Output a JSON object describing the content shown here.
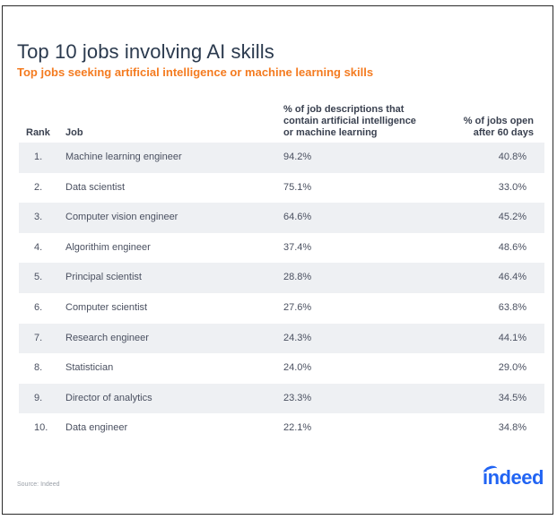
{
  "chart_data": {
    "type": "table",
    "title": "Top 10 jobs involving AI skills",
    "subtitle": "Top jobs seeking artificial intelligence or machine learning skills",
    "columns": [
      "Rank",
      "Job",
      "% of job descriptions that contain artificial intelligence or machine learning",
      "% of jobs open after 60 days"
    ],
    "header_lines": {
      "rank": "Rank",
      "job": "Job",
      "desc": [
        "% of job descriptions that",
        "contain artificial intelligence",
        "or machine learning"
      ],
      "open": [
        "% of jobs open",
        "after 60 days"
      ]
    },
    "rows": [
      {
        "rank": "1.",
        "job": "Machine learning engineer",
        "desc": "94.2%",
        "open": "40.8%"
      },
      {
        "rank": "2.",
        "job": "Data scientist",
        "desc": "75.1%",
        "open": "33.0%"
      },
      {
        "rank": "3.",
        "job": "Computer vision engineer",
        "desc": "64.6%",
        "open": "45.2%"
      },
      {
        "rank": "4.",
        "job": "Algorithim engineer",
        "desc": "37.4%",
        "open": "48.6%"
      },
      {
        "rank": "5.",
        "job": "Principal scientist",
        "desc": "28.8%",
        "open": "46.4%"
      },
      {
        "rank": "6.",
        "job": "Computer scientist",
        "desc": "27.6%",
        "open": "63.8%"
      },
      {
        "rank": "7.",
        "job": "Research engineer",
        "desc": "24.3%",
        "open": "44.1%"
      },
      {
        "rank": "8.",
        "job": "Statistician",
        "desc": "24.0%",
        "open": "29.0%"
      },
      {
        "rank": "9.",
        "job": "Director of analytics",
        "desc": "23.3%",
        "open": "34.5%"
      },
      {
        "rank": "10.",
        "job": "Data engineer",
        "desc": "22.1%",
        "open": "34.8%"
      }
    ]
  },
  "footer": {
    "source": "Source: Indeed",
    "logo_text": "indeed"
  },
  "colors": {
    "title": "#2b3a4e",
    "subtitle": "#f47b20",
    "row_stripe": "#eef0f3",
    "logo": "#2164f3"
  }
}
